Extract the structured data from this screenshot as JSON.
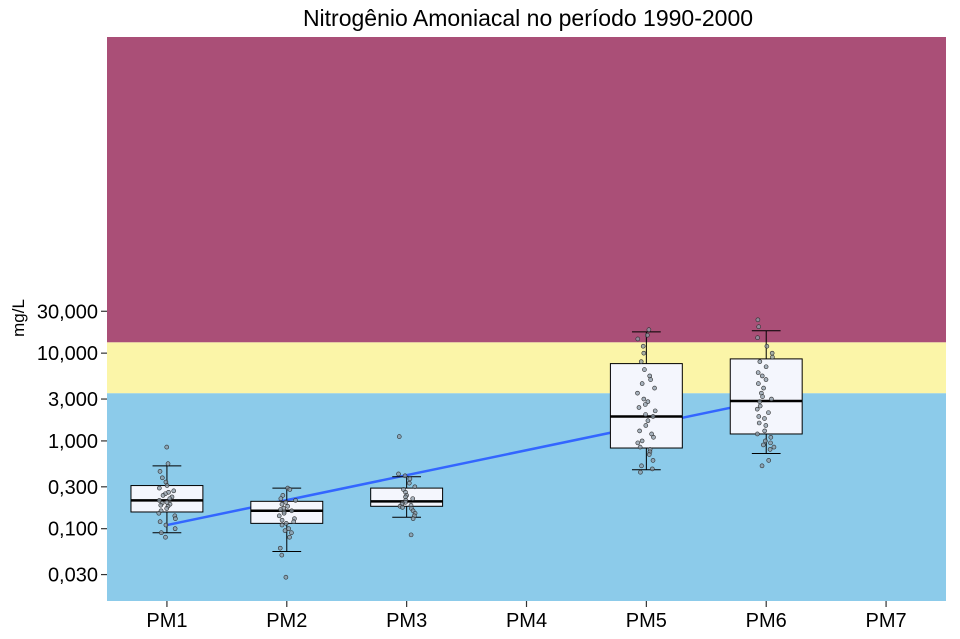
{
  "chart_data": {
    "type": "box",
    "title": "Nitrogênio Amoniacal no período 1990-2000",
    "xlabel": "",
    "ylabel": "mg/L",
    "y_scale": "log10",
    "ylim": [
      0.015,
      40000
    ],
    "categories": [
      "PM1",
      "PM2",
      "PM3",
      "PM4",
      "PM5",
      "PM6",
      "PM7"
    ],
    "y_ticks": [
      {
        "value": 0.03,
        "label": "0,030"
      },
      {
        "value": 0.1,
        "label": "0,100"
      },
      {
        "value": 0.3,
        "label": "0,300"
      },
      {
        "value": 1,
        "label": "1,000"
      },
      {
        "value": 3,
        "label": "3,000"
      },
      {
        "value": 10,
        "label": "10,000"
      },
      {
        "value": 30,
        "label": "30,000"
      }
    ],
    "bands": [
      {
        "from": 0.015,
        "to": 3.5,
        "color": "#8ccbea"
      },
      {
        "from": 3.5,
        "to": 13.3,
        "color": "#fbf5a8"
      },
      {
        "from": 13.3,
        "to": 40000,
        "color": "#aa4f77"
      }
    ],
    "boxes": [
      {
        "category": "PM1",
        "whisker_low": 0.09,
        "q1": 0.155,
        "median": 0.21,
        "q3": 0.31,
        "whisker_high": 0.52
      },
      {
        "category": "PM2",
        "whisker_low": 0.055,
        "q1": 0.115,
        "median": 0.16,
        "q3": 0.205,
        "whisker_high": 0.29
      },
      {
        "category": "PM3",
        "whisker_low": 0.135,
        "q1": 0.18,
        "median": 0.205,
        "q3": 0.29,
        "whisker_high": 0.39
      },
      {
        "category": "PM5",
        "whisker_low": 0.47,
        "q1": 0.83,
        "median": 1.9,
        "q3": 7.6,
        "whisker_high": 17.5
      },
      {
        "category": "PM6",
        "whisker_low": 0.72,
        "q1": 1.2,
        "median": 2.85,
        "q3": 8.6,
        "whisker_high": 18.0
      }
    ],
    "points": [
      {
        "category": "PM1",
        "values": [
          0.85,
          0.55,
          0.45,
          0.38,
          0.34,
          0.31,
          0.29,
          0.27,
          0.26,
          0.25,
          0.24,
          0.23,
          0.22,
          0.21,
          0.2,
          0.195,
          0.19,
          0.185,
          0.18,
          0.17,
          0.16,
          0.15,
          0.14,
          0.13,
          0.12,
          0.11,
          0.1,
          0.09,
          0.08
        ]
      },
      {
        "category": "PM2",
        "values": [
          0.29,
          0.28,
          0.24,
          0.22,
          0.21,
          0.2,
          0.19,
          0.18,
          0.17,
          0.165,
          0.16,
          0.155,
          0.15,
          0.14,
          0.13,
          0.125,
          0.12,
          0.115,
          0.11,
          0.1,
          0.095,
          0.09,
          0.08,
          0.06,
          0.05,
          0.028
        ]
      },
      {
        "category": "PM3",
        "values": [
          1.12,
          0.42,
          0.4,
          0.37,
          0.33,
          0.3,
          0.28,
          0.26,
          0.24,
          0.23,
          0.22,
          0.21,
          0.2,
          0.195,
          0.19,
          0.185,
          0.18,
          0.175,
          0.17,
          0.16,
          0.15,
          0.14,
          0.13,
          0.085
        ]
      },
      {
        "category": "PM5",
        "values": [
          18.5,
          16.0,
          14.5,
          12.0,
          10.0,
          8.0,
          6.5,
          5.5,
          5.0,
          4.5,
          4.0,
          3.5,
          3.0,
          2.8,
          2.6,
          2.4,
          2.2,
          2.0,
          1.9,
          1.7,
          1.5,
          1.3,
          1.2,
          1.1,
          1.0,
          0.95,
          0.85,
          0.8,
          0.75,
          0.7,
          0.6,
          0.52,
          0.48,
          0.44
        ]
      },
      {
        "category": "PM6",
        "values": [
          24.0,
          20.0,
          15.0,
          12.0,
          10.0,
          9.0,
          8.0,
          7.0,
          6.0,
          5.5,
          5.0,
          4.5,
          4.0,
          3.5,
          3.2,
          3.0,
          2.8,
          2.5,
          2.3,
          2.1,
          1.9,
          1.8,
          1.6,
          1.5,
          1.3,
          1.2,
          1.1,
          1.0,
          0.95,
          0.9,
          0.85,
          0.8,
          0.6,
          0.52
        ]
      }
    ],
    "trend_line": {
      "color": "#3366ff",
      "from": {
        "category": "PM1",
        "value": 0.11
      },
      "to": {
        "category": "PM6",
        "value": 2.9
      }
    },
    "box_fill": "#f4f6fd",
    "grid": false,
    "legend": "none"
  }
}
